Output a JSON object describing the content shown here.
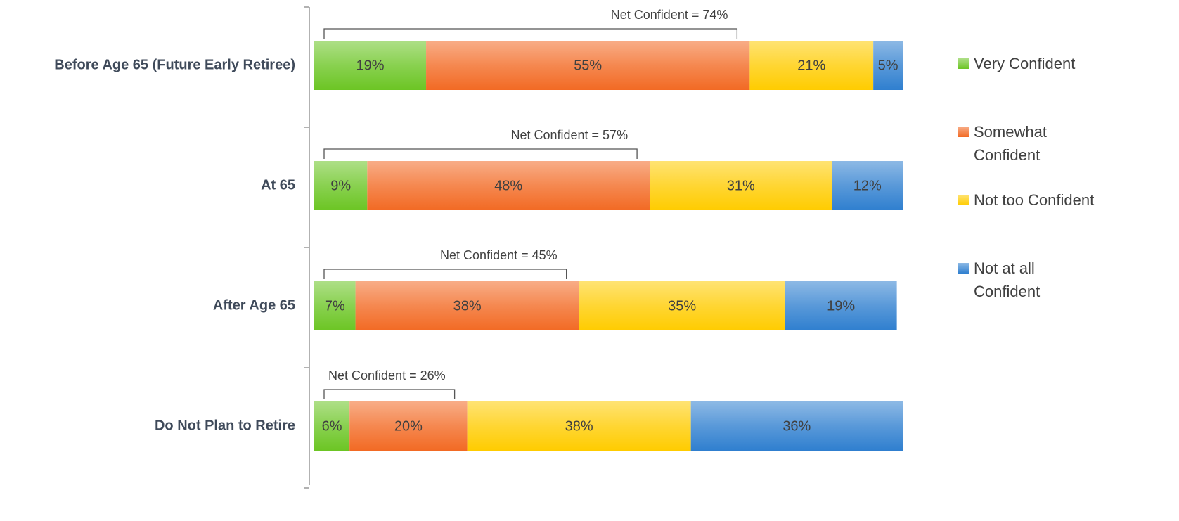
{
  "chart_data": {
    "type": "stacked-barh",
    "categories": [
      "Before Age 65 (Future Early Retiree)",
      "At 65",
      "After Age 65",
      "Do Not Plan to Retire"
    ],
    "xlim": [
      0,
      100
    ],
    "series": [
      {
        "name": "Very Confident",
        "color": "#6cc524",
        "values": [
          19,
          9,
          7,
          6
        ],
        "value_labels": [
          "19%",
          "9%",
          "7%",
          "6%"
        ]
      },
      {
        "name": "Somewhat Confident",
        "color": "#f26a24",
        "values": [
          55,
          48,
          38,
          20
        ],
        "value_labels": [
          "55%",
          "48%",
          "38%",
          "20%"
        ]
      },
      {
        "name": "Not too Confident",
        "color": "#ffcc00",
        "values": [
          21,
          31,
          35,
          38
        ],
        "value_labels": [
          "21%",
          "31%",
          "35%",
          "38%"
        ]
      },
      {
        "name": "Not at all Confident",
        "color": "#2f7fcf",
        "values": [
          5,
          12,
          19,
          36
        ],
        "value_labels": [
          "5%",
          "12%",
          "19%",
          "36%"
        ]
      }
    ],
    "annotations": [
      {
        "text": "Net Confident = 74%",
        "value": 74
      },
      {
        "text": "Net Confident = 57%",
        "value": 57
      },
      {
        "text": "Net Confident = 45%",
        "value": 45
      },
      {
        "text": "Net Confident = 26%",
        "value": 26
      }
    ],
    "legend": "right"
  }
}
